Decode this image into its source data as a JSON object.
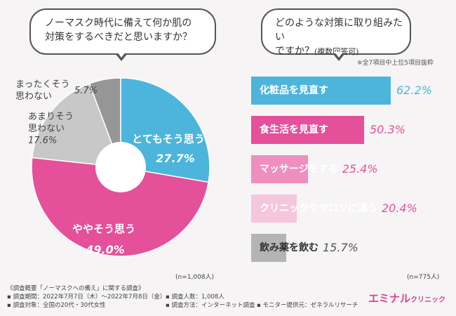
{
  "left_question": {
    "line1": "ノーマスク時代に備えて何か肌の",
    "line2": "対策をするべきだと思いますか？"
  },
  "right_question": {
    "line1": "どのような対策に取り組みたい",
    "line2": "ですか？",
    "line2_small": "(複数回答可)"
  },
  "note": "※全7項目中上位5項目抜粋",
  "pie_n": "(n=1,008人)",
  "bar_n": "(n=775人)",
  "colors": {
    "pink": "#e5509a",
    "blue": "#4db5dc",
    "light_gray": "#c8c8c8",
    "dark_gray": "#969696"
  },
  "chart_data": [
    {
      "type": "pie",
      "slices": [
        {
          "label_line1": "とてもそう思う",
          "label_line2": "",
          "value": 27.7,
          "value_text": "27.7%",
          "color": "#4db5dc"
        },
        {
          "label_line1": "ややそう思う",
          "label_line2": "",
          "value": 49.0,
          "value_text": "49.0%",
          "color": "#e5509a"
        },
        {
          "label_line1": "あまりそう",
          "label_line2": "思わない",
          "value": 17.6,
          "value_text": "17.6%",
          "color": "#c8c8c8"
        },
        {
          "label_line1": "まったくそう",
          "label_line2": "思わない",
          "value": 5.7,
          "value_text": "5.7%",
          "color": "#969696"
        }
      ]
    },
    {
      "type": "bar",
      "orientation": "horizontal",
      "xlim": [
        0,
        100
      ],
      "bars": [
        {
          "label": "化粧品を見直す",
          "value": 62.2,
          "value_text": "62.2%",
          "color": "#4db5dc",
          "text_color": "#ffffff",
          "value_color": "#4db5dc"
        },
        {
          "label": "食生活を見直す",
          "value": 50.3,
          "value_text": "50.3%",
          "color": "#e5509a",
          "text_color": "#ffffff",
          "value_color": "#e5509a"
        },
        {
          "label": "マッサージをする",
          "value": 25.4,
          "value_text": "25.4%",
          "color": "#ee8fbf",
          "text_color": "#ffffff",
          "value_color": "#e5509a"
        },
        {
          "label": "クリニックやサロンに通う",
          "value": 20.4,
          "value_text": "20.4%",
          "color": "#f5c6de",
          "text_color": "#ffffff",
          "value_color": "#e5509a"
        },
        {
          "label": "飲み薬を飲む",
          "value": 15.7,
          "value_text": "15.7%",
          "color": "#b4b4b4",
          "text_color": "#333333",
          "value_color": "#555555"
        }
      ]
    }
  ],
  "footer": {
    "line1": "《調査概要「ノーマスクへの備え」に関する調査》",
    "line2": "▪ 調査期間：2022年7月7日（木）〜2022年7月8日（金）",
    "line3": "▪ 調査対象：全国の20代・30代女性",
    "line4": "▪ 調査人数：1,008人",
    "line5": "▪ 調査方法：インターネット調査",
    "line6": "▪ モニター提供元：ゼネラルリサーチ"
  },
  "logo": {
    "main": "エミナル",
    "sub": "クリニック"
  }
}
